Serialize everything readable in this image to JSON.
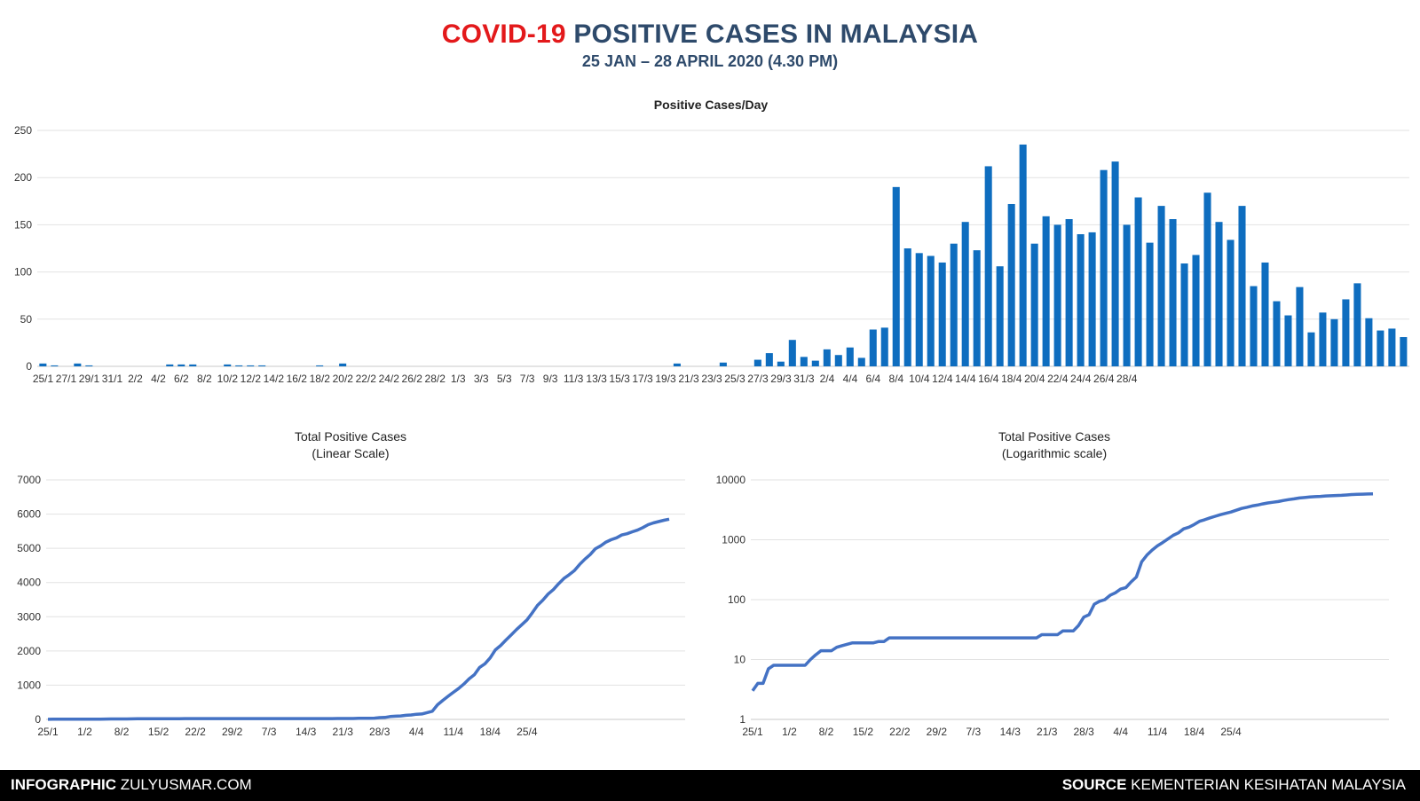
{
  "header": {
    "title_highlight": "COVID-19",
    "title_rest": "POSITIVE CASES IN MALAYSIA",
    "subtitle": "25 JAN – 28 APRIL 2020 (4.30 PM)"
  },
  "footer": {
    "left_bold": "INFOGRAPHIC",
    "left_text": "ZULYUSMAR.COM",
    "right_bold": "SOURCE",
    "right_text": "KEMENTERIAN KESIHATAN MALAYSIA"
  },
  "colors": {
    "accent_red": "#e3191b",
    "title_blue": "#2e4a6b",
    "bar_blue": "#0e6dbf",
    "line_blue": "#4472c4"
  },
  "chart_data": [
    {
      "type": "bar",
      "title": "Positive Cases/Day",
      "xlabel": "",
      "ylabel": "",
      "ylim": [
        0,
        250
      ],
      "yticks": [
        0,
        50,
        100,
        150,
        200,
        250
      ],
      "grid": true,
      "start_date": "25/1",
      "categories_tick_labels": [
        "25/1",
        "27/1",
        "29/1",
        "31/1",
        "2/2",
        "4/2",
        "6/2",
        "8/2",
        "10/2",
        "12/2",
        "14/2",
        "16/2",
        "18/2",
        "20/2",
        "22/2",
        "24/2",
        "26/2",
        "28/2",
        "1/3",
        "3/3",
        "5/3",
        "7/3",
        "9/3",
        "11/3",
        "13/3",
        "15/3",
        "17/3",
        "19/3",
        "21/3",
        "23/3",
        "25/3",
        "27/3",
        "29/3",
        "31/3",
        "2/4",
        "4/4",
        "6/4",
        "8/4",
        "10/4",
        "12/4",
        "14/4",
        "16/4",
        "18/4",
        "20/4",
        "22/4",
        "24/4",
        "26/4",
        "28/4"
      ],
      "values": [
        3,
        1,
        0,
        3,
        1,
        0,
        0,
        0,
        0,
        0,
        0,
        2,
        2,
        2,
        0,
        0,
        2,
        1,
        1,
        1,
        0,
        0,
        0,
        0,
        1,
        0,
        3,
        0,
        0,
        0,
        0,
        0,
        0,
        0,
        0,
        0,
        0,
        0,
        0,
        0,
        0,
        0,
        0,
        0,
        0,
        0,
        0,
        0,
        0,
        0,
        0,
        0,
        0,
        0,
        0,
        3,
        0,
        0,
        0,
        4,
        0,
        0,
        7,
        14,
        5,
        28,
        10,
        6,
        18,
        12,
        20,
        9,
        39,
        41,
        190,
        125,
        120,
        117,
        110,
        130,
        153,
        123,
        212,
        106,
        172,
        235,
        130,
        159,
        150,
        156,
        140,
        142,
        208,
        217,
        150,
        179,
        131,
        170,
        156,
        109,
        118,
        184,
        153,
        134,
        170,
        85,
        110,
        69,
        54,
        84,
        36,
        57,
        50,
        71,
        88,
        51,
        38,
        40,
        31
      ]
    },
    {
      "type": "line",
      "title": "Total Positive Cases",
      "subtitle": "(Linear Scale)",
      "xlabel": "",
      "ylabel": "",
      "ylim": [
        0,
        7000
      ],
      "yticks": [
        0,
        1000,
        2000,
        3000,
        4000,
        5000,
        6000,
        7000
      ],
      "grid": true,
      "start_date": "25/1",
      "x_tick_labels": [
        "25/1",
        "1/2",
        "8/2",
        "15/2",
        "22/2",
        "29/2",
        "7/3",
        "14/3",
        "21/3",
        "28/3",
        "4/4",
        "11/4",
        "18/4",
        "25/4"
      ],
      "series": [
        {
          "name": "Total Positive Cases",
          "values": "cumulative of daily values"
        }
      ]
    },
    {
      "type": "line",
      "title": "Total Positive Cases",
      "subtitle": "(Logarithmic scale)",
      "xlabel": "",
      "ylabel": "",
      "yscale": "log",
      "ylim": [
        1,
        10000
      ],
      "yticks": [
        1,
        10,
        100,
        1000,
        10000
      ],
      "grid": true,
      "start_date": "25/1",
      "x_tick_labels": [
        "25/1",
        "1/2",
        "8/2",
        "15/2",
        "22/2",
        "29/2",
        "7/3",
        "14/3",
        "21/3",
        "28/3",
        "4/4",
        "11/4",
        "18/4",
        "25/4"
      ],
      "series": [
        {
          "name": "Total Positive Cases",
          "values": "cumulative of daily values"
        }
      ]
    }
  ]
}
